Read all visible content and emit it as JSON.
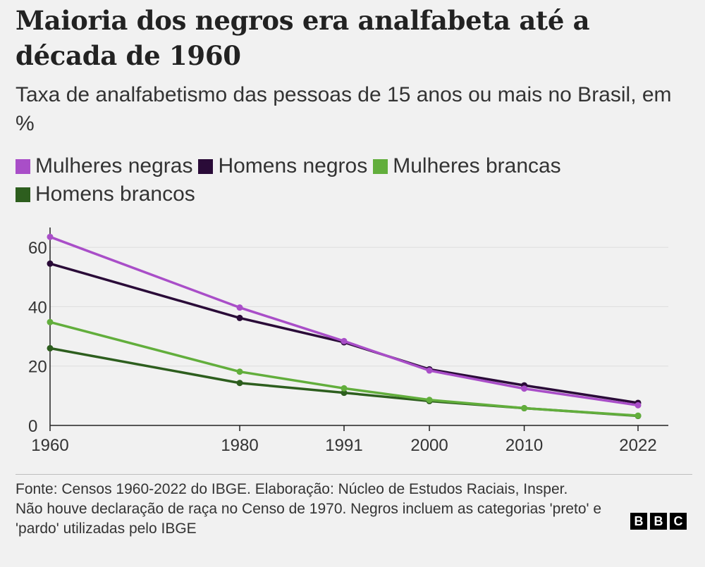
{
  "title": "Maioria dos negros era analfabeta até a década de 1960",
  "subtitle": "Taxa de analfabetismo das pessoas de 15 anos ou mais no Brasil, em %",
  "colors": {
    "mulheres_negras": "#a94ec8",
    "homens_negros": "#2a0b38",
    "mulheres_brancas": "#62ae3c",
    "homens_brancos": "#2d5e1e",
    "background": "#f1f1f1",
    "axis": "#222222",
    "grid": "#dddddd"
  },
  "chart_data": {
    "type": "line",
    "title": "Maioria dos negros era analfabeta até a década de 1960",
    "subtitle": "Taxa de analfabetismo das pessoas de 15 anos ou mais no Brasil, em %",
    "x": [
      1960,
      1980,
      1991,
      2000,
      2010,
      2022
    ],
    "x_tick_labels": [
      "1960",
      "1980",
      "1991",
      "2000",
      "2010",
      "2022"
    ],
    "y_tick_labels": [
      "0",
      "20",
      "40",
      "60"
    ],
    "xlim": [
      1960,
      2022
    ],
    "ylim": [
      0,
      65
    ],
    "grid": true,
    "legend_position": "top-left",
    "series": [
      {
        "name": "Mulheres negras",
        "color": "#a94ec8",
        "values": [
          63.5,
          39.7,
          28.4,
          18.5,
          12.4,
          6.8
        ]
      },
      {
        "name": "Homens negros",
        "color": "#2a0b38",
        "values": [
          54.5,
          36.2,
          28.0,
          18.9,
          13.5,
          7.6
        ]
      },
      {
        "name": "Mulheres brancas",
        "color": "#62ae3c",
        "values": [
          34.8,
          18.1,
          12.5,
          8.6,
          5.8,
          3.3
        ]
      },
      {
        "name": "Homens brancos",
        "color": "#2d5e1e",
        "values": [
          26.0,
          14.3,
          11.0,
          8.2,
          5.8,
          3.2
        ]
      }
    ]
  },
  "footer": {
    "source": "Fonte: Censos 1960-2022 do IBGE. Elaboração: Núcleo de Estudos Raciais, Insper.",
    "note": "Não houve declaração de raça no Censo de 1970. Negros incluem as categorias 'preto' e 'pardo' utilizadas pelo IBGE"
  },
  "logo": {
    "letters": [
      "B",
      "B",
      "C"
    ]
  }
}
